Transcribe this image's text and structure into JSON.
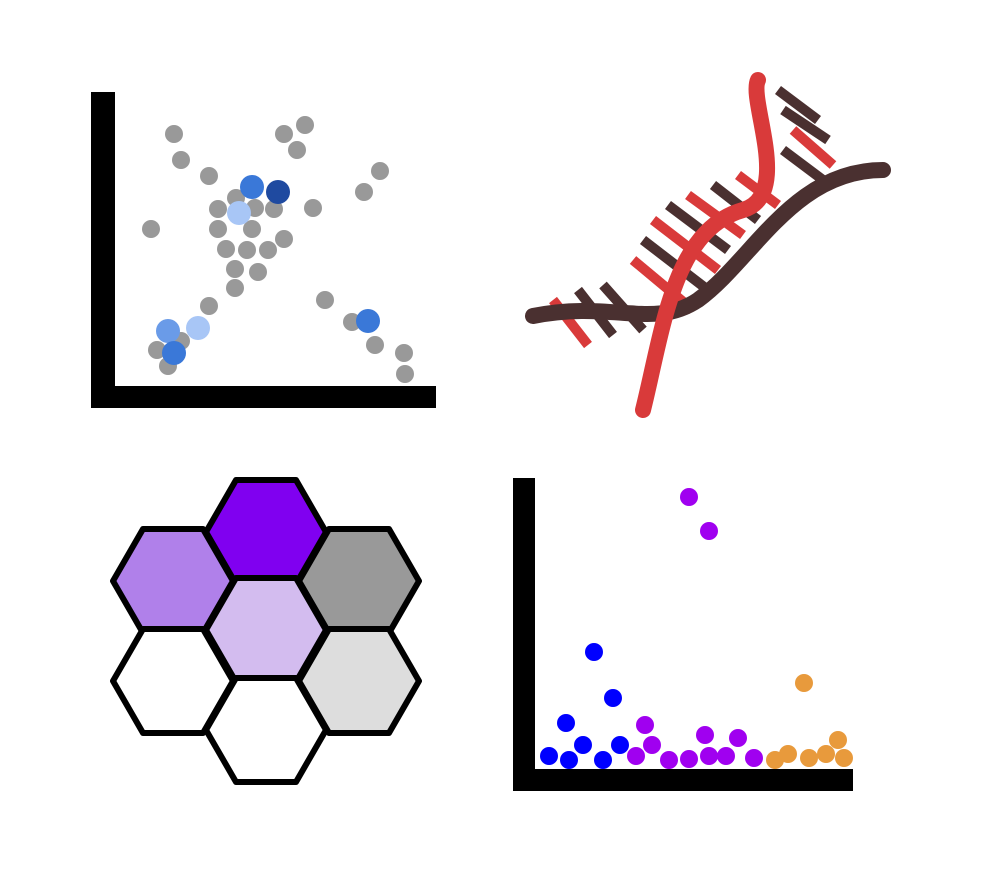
{
  "panels": [
    {
      "id": "scatter-grey-blue",
      "kind": "scatter-icon"
    },
    {
      "id": "dna-helix",
      "kind": "dna-icon"
    },
    {
      "id": "hexagon-cluster",
      "kind": "hexagon-icon"
    },
    {
      "id": "scatter-colored",
      "kind": "scatter-icon"
    }
  ],
  "colors": {
    "axis": "#000000",
    "grey_point": "#999999",
    "blue_1": "#3a78d8",
    "blue_dark": "#1f4aa0",
    "blue_light": "#a8c6f6",
    "blue_mid": "#6a9be8",
    "purple_dark": "#8000f0",
    "purple_mid": "#b080ea",
    "purple_light": "#d3bcef",
    "grey_dark": "#999999",
    "grey_light": "#dddddd",
    "white": "#ffffff",
    "series_blue": "#0000ff",
    "series_purple": "#a000f0",
    "series_orange": "#e89a3c",
    "dna_red": "#d93a3a",
    "dna_dark": "#4a3030"
  }
}
